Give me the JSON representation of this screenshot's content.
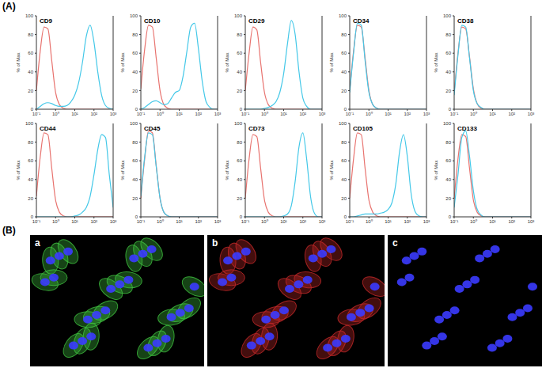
{
  "panel_labels": [
    "(A)",
    "(B)"
  ],
  "chart_data": [
    {
      "type": "line",
      "title": "CD9",
      "y_label": "% of Max",
      "log": "x",
      "xlim": [
        0.1,
        1000
      ],
      "xticks": [
        {
          "value": 0.1,
          "label": "10⁻¹"
        },
        {
          "value": 1,
          "label": "10⁰"
        },
        {
          "value": 10,
          "label": "10¹"
        },
        {
          "value": 100,
          "label": "10²"
        },
        {
          "value": 1000,
          "label": "10³"
        }
      ],
      "ylim": [
        0,
        100
      ],
      "yticks": [
        0,
        20,
        40,
        60,
        80,
        100
      ],
      "x": [
        0.1,
        0.158,
        0.251,
        0.398,
        0.631,
        1,
        1.58,
        2.51,
        3.98,
        6.31,
        10,
        15.8,
        25.1,
        39.8,
        63.1,
        100,
        158,
        251,
        398,
        631,
        1000
      ],
      "series": [
        {
          "color": "#e8736f",
          "values": [
            20,
            62,
            88,
            86,
            52,
            18,
            5,
            1,
            0,
            0,
            0,
            0,
            0,
            0,
            0,
            0,
            0,
            0,
            0,
            0,
            0
          ]
        },
        {
          "color": "#44c8e8",
          "values": [
            0,
            3,
            6,
            7,
            6,
            4,
            3,
            3,
            4,
            8,
            15,
            28,
            50,
            78,
            90,
            72,
            40,
            15,
            4,
            1,
            0
          ]
        }
      ]
    },
    {
      "type": "line",
      "title": "CD10",
      "y_label": "% of Max",
      "log": "x",
      "xlim": [
        0.1,
        1000
      ],
      "xticks": [
        {
          "value": 0.1,
          "label": "10⁻¹"
        },
        {
          "value": 1,
          "label": "10⁰"
        },
        {
          "value": 10,
          "label": "10¹"
        },
        {
          "value": 100,
          "label": "10²"
        },
        {
          "value": 1000,
          "label": "10³"
        }
      ],
      "ylim": [
        0,
        100
      ],
      "yticks": [
        0,
        20,
        40,
        60,
        80,
        100
      ],
      "x": [
        0.1,
        0.158,
        0.251,
        0.398,
        0.631,
        1,
        1.58,
        2.51,
        3.98,
        6.31,
        10,
        15.8,
        25.1,
        39.8,
        63.1,
        100,
        158,
        251,
        398,
        631,
        1000
      ],
      "series": [
        {
          "color": "#e8736f",
          "values": [
            22,
            64,
            90,
            88,
            55,
            20,
            5,
            1,
            0,
            0,
            0,
            0,
            0,
            0,
            0,
            0,
            0,
            0,
            0,
            0,
            0
          ]
        },
        {
          "color": "#44c8e8",
          "values": [
            0,
            2,
            5,
            8,
            9,
            7,
            5,
            6,
            12,
            18,
            20,
            35,
            62,
            88,
            92,
            65,
            30,
            8,
            2,
            0,
            0
          ]
        }
      ]
    },
    {
      "type": "line",
      "title": "CD29",
      "y_label": "% of Max",
      "log": "x",
      "xlim": [
        0.1,
        1000
      ],
      "xticks": [
        {
          "value": 0.1,
          "label": "10⁻¹"
        },
        {
          "value": 1,
          "label": "10⁰"
        },
        {
          "value": 10,
          "label": "10¹"
        },
        {
          "value": 100,
          "label": "10²"
        },
        {
          "value": 1000,
          "label": "10³"
        }
      ],
      "ylim": [
        0,
        100
      ],
      "yticks": [
        0,
        20,
        40,
        60,
        80,
        100
      ],
      "x": [
        0.1,
        0.158,
        0.251,
        0.398,
        0.631,
        1,
        1.58,
        2.51,
        3.98,
        6.31,
        10,
        15.8,
        25.1,
        39.8,
        63.1,
        100,
        158,
        251,
        398,
        631,
        1000
      ],
      "series": [
        {
          "color": "#e8736f",
          "values": [
            20,
            60,
            88,
            85,
            50,
            18,
            5,
            1,
            0,
            0,
            0,
            0,
            0,
            0,
            0,
            0,
            0,
            0,
            0,
            0,
            0
          ]
        },
        {
          "color": "#44c8e8",
          "values": [
            0,
            0,
            0,
            0,
            0,
            1,
            2,
            4,
            8,
            18,
            38,
            70,
            95,
            80,
            40,
            12,
            3,
            0,
            0,
            0,
            0
          ]
        }
      ]
    },
    {
      "type": "line",
      "title": "CD34",
      "y_label": "% of Max",
      "log": "x",
      "xlim": [
        0.1,
        1000
      ],
      "xticks": [
        {
          "value": 0.1,
          "label": "10⁻¹"
        },
        {
          "value": 1,
          "label": "10⁰"
        },
        {
          "value": 10,
          "label": "10¹"
        },
        {
          "value": 100,
          "label": "10²"
        },
        {
          "value": 1000,
          "label": "10³"
        }
      ],
      "ylim": [
        0,
        100
      ],
      "yticks": [
        0,
        20,
        40,
        60,
        80,
        100
      ],
      "x": [
        0.1,
        0.158,
        0.251,
        0.398,
        0.631,
        1,
        1.58,
        2.51,
        3.98,
        6.31,
        10,
        15.8,
        25.1,
        39.8,
        63.1,
        100,
        158,
        251,
        398,
        631,
        1000
      ],
      "series": [
        {
          "color": "#e8736f",
          "values": [
            20,
            62,
            90,
            88,
            55,
            20,
            5,
            1,
            0,
            0,
            0,
            0,
            0,
            0,
            0,
            0,
            0,
            0,
            0,
            0,
            0
          ]
        },
        {
          "color": "#44c8e8",
          "values": [
            18,
            60,
            92,
            90,
            52,
            18,
            5,
            1,
            0,
            0,
            0,
            0,
            0,
            0,
            0,
            0,
            0,
            0,
            0,
            0,
            0
          ]
        }
      ]
    },
    {
      "type": "line",
      "title": "CD38",
      "y_label": "% of Max",
      "log": "x",
      "xlim": [
        0.1,
        1000
      ],
      "xticks": [
        {
          "value": 0.1,
          "label": "10⁻¹"
        },
        {
          "value": 1,
          "label": "10⁰"
        },
        {
          "value": 10,
          "label": "10¹"
        },
        {
          "value": 100,
          "label": "10²"
        },
        {
          "value": 1000,
          "label": "10³"
        }
      ],
      "ylim": [
        0,
        100
      ],
      "yticks": [
        0,
        20,
        40,
        60,
        80,
        100
      ],
      "x": [
        0.1,
        0.158,
        0.251,
        0.398,
        0.631,
        1,
        1.58,
        2.51,
        3.98,
        6.31,
        10,
        15.8,
        25.1,
        39.8,
        63.1,
        100,
        158,
        251,
        398,
        631,
        1000
      ],
      "series": [
        {
          "color": "#e8736f",
          "values": [
            18,
            60,
            88,
            86,
            56,
            22,
            6,
            1,
            0,
            0,
            0,
            0,
            0,
            0,
            0,
            0,
            0,
            0,
            0,
            0,
            0
          ]
        },
        {
          "color": "#44c8e8",
          "values": [
            15,
            58,
            90,
            88,
            55,
            20,
            6,
            2,
            0,
            0,
            0,
            0,
            0,
            0,
            0,
            0,
            0,
            0,
            0,
            0,
            0
          ]
        }
      ]
    },
    {
      "type": "line",
      "title": "CD44",
      "y_label": "% of Max",
      "log": "x",
      "xlim": [
        0.1,
        1000
      ],
      "xticks": [
        {
          "value": 0.1,
          "label": "10⁻¹"
        },
        {
          "value": 1,
          "label": "10⁰"
        },
        {
          "value": 10,
          "label": "10¹"
        },
        {
          "value": 100,
          "label": "10²"
        },
        {
          "value": 1000,
          "label": "10³"
        }
      ],
      "ylim": [
        0,
        100
      ],
      "yticks": [
        0,
        20,
        40,
        60,
        80,
        100
      ],
      "x": [
        0.1,
        0.158,
        0.251,
        0.398,
        0.631,
        1,
        1.58,
        2.51,
        3.98,
        6.31,
        10,
        15.8,
        25.1,
        39.8,
        63.1,
        100,
        158,
        251,
        398,
        631,
        1000
      ],
      "series": [
        {
          "color": "#e8736f",
          "values": [
            22,
            64,
            90,
            88,
            52,
            18,
            5,
            1,
            0,
            0,
            0,
            0,
            0,
            0,
            0,
            0,
            0,
            0,
            0,
            0,
            0
          ]
        },
        {
          "color": "#44c8e8",
          "values": [
            0,
            0,
            0,
            0,
            0,
            0,
            0,
            0,
            0,
            0,
            1,
            2,
            5,
            10,
            22,
            45,
            72,
            88,
            85,
            45,
            10
          ]
        }
      ]
    },
    {
      "type": "line",
      "title": "CD45",
      "y_label": "% of Max",
      "log": "x",
      "xlim": [
        0.1,
        1000
      ],
      "xticks": [
        {
          "value": 0.1,
          "label": "10⁻¹"
        },
        {
          "value": 1,
          "label": "10⁰"
        },
        {
          "value": 10,
          "label": "10¹"
        },
        {
          "value": 100,
          "label": "10²"
        },
        {
          "value": 1000,
          "label": "10³"
        }
      ],
      "ylim": [
        0,
        100
      ],
      "yticks": [
        0,
        20,
        40,
        60,
        80,
        100
      ],
      "x": [
        0.1,
        0.158,
        0.251,
        0.398,
        0.631,
        1,
        1.58,
        2.51,
        3.98,
        6.31,
        10,
        15.8,
        25.1,
        39.8,
        63.1,
        100,
        158,
        251,
        398,
        631,
        1000
      ],
      "series": [
        {
          "color": "#e8736f",
          "values": [
            20,
            62,
            92,
            90,
            55,
            20,
            5,
            1,
            0,
            0,
            0,
            0,
            0,
            0,
            0,
            0,
            0,
            0,
            0,
            0,
            0
          ]
        },
        {
          "color": "#44c8e8",
          "values": [
            22,
            64,
            90,
            88,
            54,
            20,
            5,
            1,
            0,
            0,
            0,
            0,
            0,
            0,
            0,
            0,
            0,
            0,
            0,
            0,
            0
          ]
        }
      ]
    },
    {
      "type": "line",
      "title": "CD73",
      "y_label": "% of Max",
      "log": "x",
      "xlim": [
        0.1,
        1000
      ],
      "xticks": [
        {
          "value": 0.1,
          "label": "10⁻¹"
        },
        {
          "value": 1,
          "label": "10⁰"
        },
        {
          "value": 10,
          "label": "10¹"
        },
        {
          "value": 100,
          "label": "10²"
        },
        {
          "value": 1000,
          "label": "10³"
        }
      ],
      "ylim": [
        0,
        100
      ],
      "yticks": [
        0,
        20,
        40,
        60,
        80,
        100
      ],
      "x": [
        0.1,
        0.158,
        0.251,
        0.398,
        0.631,
        1,
        1.58,
        2.51,
        3.98,
        6.31,
        10,
        15.8,
        25.1,
        39.8,
        63.1,
        100,
        158,
        251,
        398,
        631,
        1000
      ],
      "series": [
        {
          "color": "#e8736f",
          "values": [
            20,
            62,
            88,
            86,
            52,
            18,
            5,
            1,
            0,
            0,
            0,
            0,
            0,
            0,
            0,
            0,
            0,
            0,
            0,
            0,
            0
          ]
        },
        {
          "color": "#44c8e8",
          "values": [
            0,
            0,
            0,
            0,
            0,
            0,
            0,
            0,
            0,
            0,
            1,
            3,
            12,
            38,
            75,
            90,
            62,
            22,
            4,
            0,
            0
          ]
        }
      ]
    },
    {
      "type": "line",
      "title": "CD105",
      "y_label": "% of Max",
      "log": "x",
      "xlim": [
        0.1,
        1000
      ],
      "xticks": [
        {
          "value": 0.1,
          "label": "10⁻¹"
        },
        {
          "value": 1,
          "label": "10⁰"
        },
        {
          "value": 10,
          "label": "10¹"
        },
        {
          "value": 100,
          "label": "10²"
        },
        {
          "value": 1000,
          "label": "10³"
        }
      ],
      "ylim": [
        0,
        100
      ],
      "yticks": [
        0,
        20,
        40,
        60,
        80,
        100
      ],
      "x": [
        0.1,
        0.158,
        0.251,
        0.398,
        0.631,
        1,
        1.58,
        2.51,
        3.98,
        6.31,
        10,
        15.8,
        25.1,
        39.8,
        63.1,
        100,
        158,
        251,
        398,
        631,
        1000
      ],
      "series": [
        {
          "color": "#e8736f",
          "values": [
            20,
            62,
            90,
            88,
            52,
            18,
            5,
            1,
            0,
            0,
            0,
            0,
            0,
            0,
            0,
            0,
            0,
            0,
            0,
            0,
            0
          ]
        },
        {
          "color": "#44c8e8",
          "values": [
            0,
            0,
            1,
            2,
            3,
            3,
            3,
            3,
            4,
            5,
            8,
            15,
            35,
            70,
            88,
            65,
            25,
            6,
            1,
            0,
            0
          ]
        }
      ]
    },
    {
      "type": "line",
      "title": "CD133",
      "y_label": "% of Max",
      "log": "x",
      "xlim": [
        0.1,
        1000
      ],
      "xticks": [
        {
          "value": 0.1,
          "label": "10⁻¹"
        },
        {
          "value": 1,
          "label": "10⁰"
        },
        {
          "value": 10,
          "label": "10¹"
        },
        {
          "value": 100,
          "label": "10²"
        },
        {
          "value": 1000,
          "label": "10³"
        }
      ],
      "ylim": [
        0,
        100
      ],
      "yticks": [
        0,
        20,
        40,
        60,
        80,
        100
      ],
      "x": [
        0.1,
        0.158,
        0.251,
        0.398,
        0.631,
        1,
        1.58,
        2.51,
        3.98,
        6.31,
        10,
        15.8,
        25.1,
        39.8,
        63.1,
        100,
        158,
        251,
        398,
        631,
        1000
      ],
      "series": [
        {
          "color": "#e8736f",
          "values": [
            20,
            62,
            88,
            86,
            52,
            18,
            5,
            1,
            0,
            0,
            0,
            0,
            0,
            0,
            0,
            0,
            0,
            0,
            0,
            0,
            0
          ]
        },
        {
          "color": "#44c8e8",
          "values": [
            10,
            45,
            85,
            92,
            65,
            28,
            8,
            2,
            0,
            0,
            0,
            0,
            0,
            0,
            0,
            0,
            0,
            0,
            0,
            0,
            0
          ]
        }
      ]
    }
  ],
  "images": [
    {
      "label": "a",
      "color": "#3fbf3f"
    },
    {
      "label": "b",
      "color": "#c02828"
    },
    {
      "label": "c"
    }
  ]
}
